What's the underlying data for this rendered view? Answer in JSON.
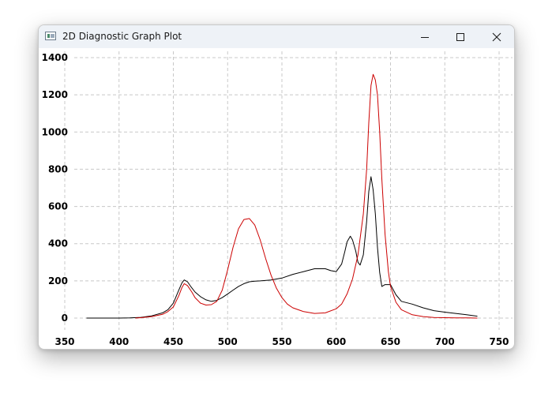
{
  "window": {
    "title": "2D Diagnostic Graph Plot",
    "controls": [
      "minimize",
      "maximize",
      "close"
    ]
  },
  "chart_data": {
    "type": "line",
    "title": "",
    "xlabel": "",
    "ylabel": "",
    "xlim": [
      350,
      750
    ],
    "ylim": [
      0,
      1400
    ],
    "grid": true,
    "grid_style": "dashed",
    "x_ticks": [
      "350",
      "400",
      "450",
      "500",
      "550",
      "600",
      "650",
      "700",
      "750"
    ],
    "y_ticks": [
      "0",
      "200",
      "400",
      "600",
      "800",
      "1000",
      "1200",
      "1400"
    ],
    "series": [
      {
        "color": "#000000",
        "x": [
          370,
          380,
          390,
          400,
          410,
          420,
          430,
          440,
          445,
          450,
          455,
          458,
          460,
          463,
          466,
          470,
          475,
          480,
          485,
          490,
          495,
          500,
          505,
          510,
          515,
          520,
          525,
          530,
          540,
          550,
          560,
          570,
          580,
          590,
          595,
          600,
          605,
          608,
          610,
          613,
          615,
          618,
          620,
          622,
          625,
          628,
          630,
          632,
          634,
          636,
          638,
          640,
          642,
          645,
          650,
          655,
          660,
          670,
          680,
          690,
          700,
          710,
          720,
          730
        ],
        "y": [
          0,
          0,
          0,
          0,
          1,
          4,
          12,
          28,
          45,
          80,
          150,
          190,
          205,
          195,
          170,
          140,
          115,
          98,
          90,
          95,
          110,
          130,
          150,
          170,
          185,
          195,
          198,
          200,
          205,
          215,
          235,
          250,
          265,
          265,
          255,
          250,
          290,
          360,
          410,
          440,
          420,
          360,
          300,
          285,
          340,
          520,
          680,
          760,
          690,
          560,
          380,
          245,
          170,
          180,
          180,
          125,
          90,
          75,
          55,
          40,
          32,
          25,
          18,
          10
        ]
      },
      {
        "color": "#cc0000",
        "x": [
          415,
          420,
          430,
          440,
          445,
          450,
          455,
          458,
          460,
          463,
          467,
          470,
          475,
          480,
          485,
          490,
          495,
          500,
          505,
          510,
          515,
          520,
          525,
          530,
          535,
          540,
          545,
          550,
          555,
          560,
          570,
          580,
          590,
          600,
          605,
          610,
          615,
          620,
          625,
          628,
          630,
          632,
          634,
          636,
          638,
          640,
          642,
          645,
          648,
          650,
          655,
          660,
          670,
          680,
          690,
          700,
          710,
          720,
          730
        ],
        "y": [
          0,
          2,
          8,
          20,
          35,
          60,
          120,
          165,
          185,
          175,
          140,
          110,
          80,
          70,
          72,
          90,
          150,
          260,
          380,
          480,
          530,
          535,
          500,
          420,
          320,
          230,
          160,
          110,
          75,
          55,
          35,
          25,
          28,
          50,
          75,
          130,
          210,
          340,
          560,
          800,
          1050,
          1250,
          1310,
          1280,
          1200,
          1000,
          750,
          450,
          250,
          170,
          85,
          45,
          18,
          8,
          3,
          2,
          1,
          1,
          0
        ]
      }
    ]
  }
}
